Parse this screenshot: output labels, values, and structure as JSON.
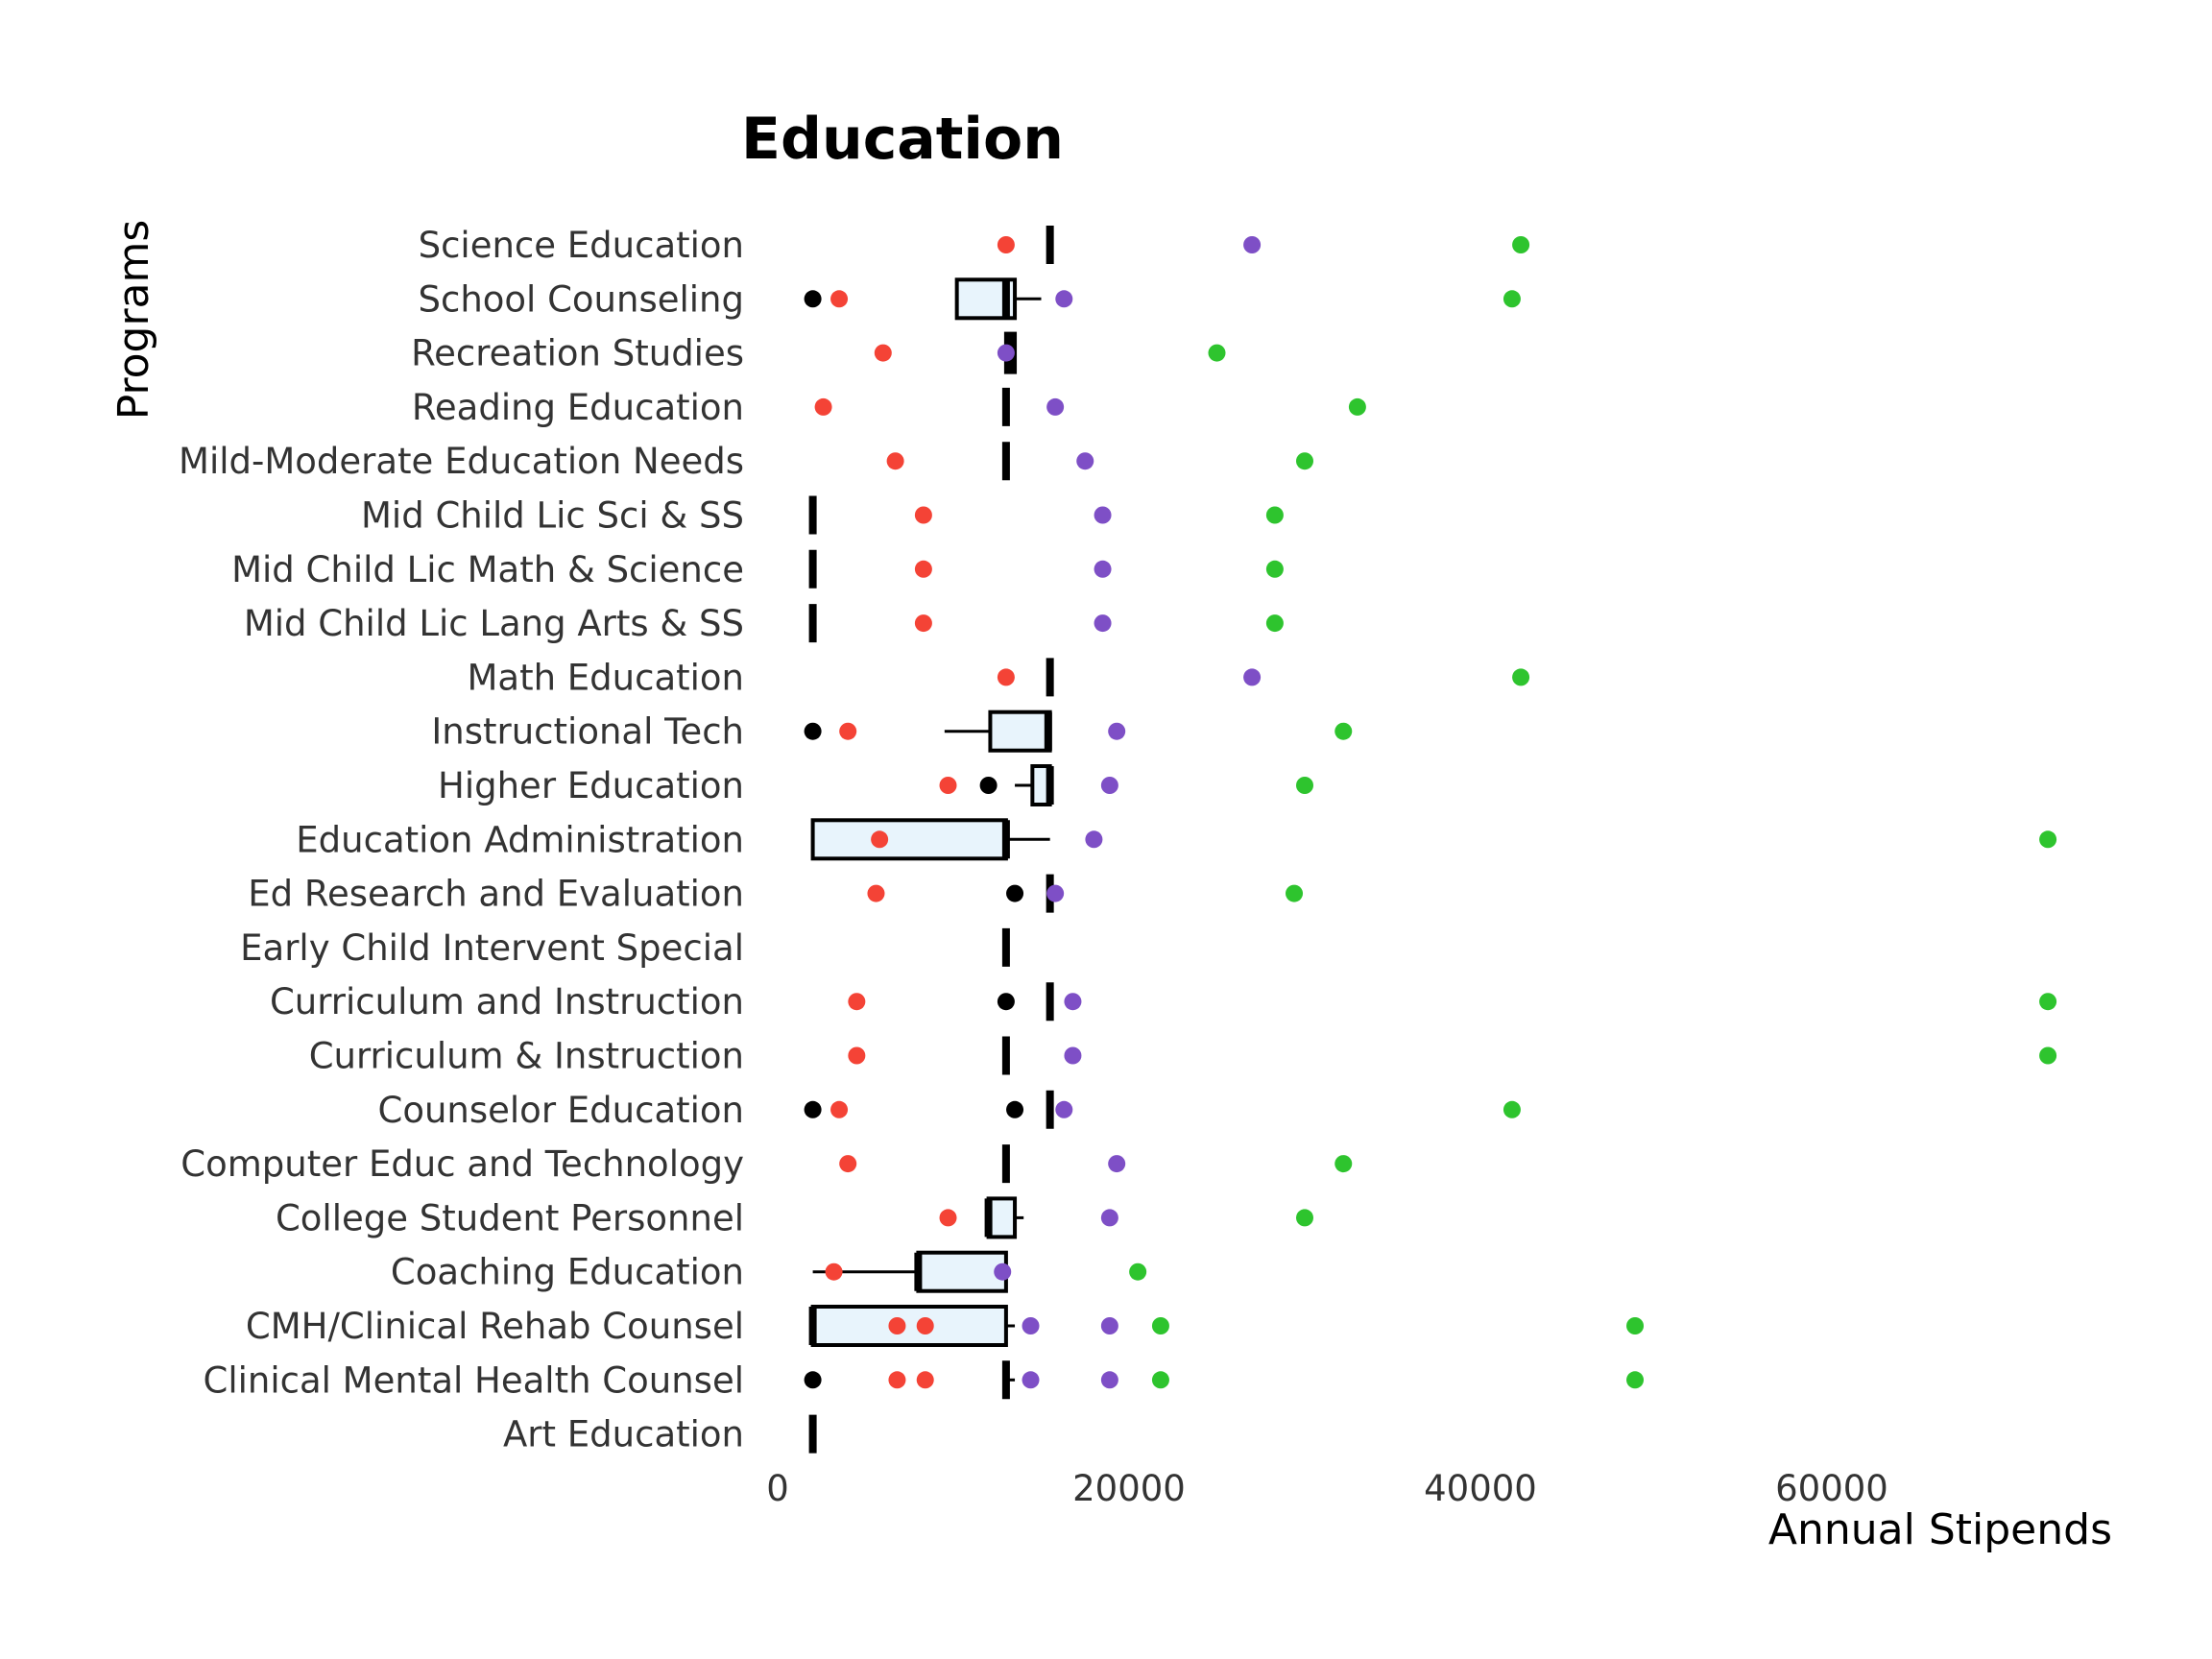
{
  "chart_data": {
    "type": "boxplot",
    "title": "Education",
    "xlabel": "Annual Stipends",
    "ylabel": "Programs",
    "xlim": [
      0,
      75000
    ],
    "xticks": [
      0,
      20000,
      40000,
      60000
    ],
    "xtick_labels": [
      "0",
      "20000",
      "40000",
      "60000"
    ],
    "grid": false,
    "colors": {
      "box_fill": "#e8f4fc",
      "box_stroke": "#000000",
      "outlier": "#000000",
      "point_red": "#f44336",
      "point_purple": "#7e4fc6",
      "point_green": "#2ec42e"
    },
    "categories": [
      "Science Education",
      "School Counseling",
      "Recreation Studies",
      "Reading Education",
      "Mild-Moderate Education Needs",
      "Mid Child Lic Sci & SS",
      "Mid Child Lic Math & Science",
      "Mid Child Lic Lang Arts & SS",
      "Math Education",
      "Instructional Tech",
      "Higher Education",
      "Education Administration",
      "Ed Research and Evaluation",
      "Early Child Intervent Special",
      "Curriculum and Instruction",
      "Curriculum & Instruction",
      "Counselor Education",
      "Computer Educ and Technology",
      "College Student Personnel",
      "Coaching Education",
      "CMH/Clinical Rehab Counsel",
      "Clinical Mental Health Counsel",
      "Art Education"
    ],
    "boxes": [
      {
        "min": 15500,
        "q1": 15500,
        "median": 15500,
        "q3": 15500,
        "max": 15500,
        "outliers": []
      },
      {
        "min": 10200,
        "q1": 10200,
        "median": 13000,
        "q3": 13500,
        "max": 15000,
        "outliers": [
          2000
        ]
      },
      {
        "min": 13000,
        "q1": 13000,
        "median": 13200,
        "q3": 13500,
        "max": 13500,
        "outliers": []
      },
      {
        "min": 13000,
        "q1": 13000,
        "median": 13000,
        "q3": 13000,
        "max": 13000,
        "outliers": []
      },
      {
        "min": 13000,
        "q1": 13000,
        "median": 13000,
        "q3": 13000,
        "max": 13000,
        "outliers": []
      },
      {
        "min": 2000,
        "q1": 2000,
        "median": 2000,
        "q3": 2000,
        "max": 2000,
        "outliers": []
      },
      {
        "min": 2000,
        "q1": 2000,
        "median": 2000,
        "q3": 2000,
        "max": 2000,
        "outliers": []
      },
      {
        "min": 2000,
        "q1": 2000,
        "median": 2000,
        "q3": 2000,
        "max": 2000,
        "outliers": []
      },
      {
        "min": 15500,
        "q1": 15500,
        "median": 15500,
        "q3": 15500,
        "max": 15500,
        "outliers": []
      },
      {
        "min": 9500,
        "q1": 12100,
        "median": 15400,
        "q3": 15500,
        "max": 15500,
        "outliers": [
          2000
        ]
      },
      {
        "min": 13500,
        "q1": 14500,
        "median": 15500,
        "q3": 15500,
        "max": 15500,
        "outliers": [
          12000
        ]
      },
      {
        "min": 2000,
        "q1": 2000,
        "median": 13000,
        "q3": 13000,
        "max": 15500,
        "outliers": []
      },
      {
        "min": 15500,
        "q1": 15500,
        "median": 15500,
        "q3": 15500,
        "max": 15500,
        "outliers": [
          13500
        ]
      },
      {
        "min": 13000,
        "q1": 13000,
        "median": 13000,
        "q3": 13000,
        "max": 13000,
        "outliers": []
      },
      {
        "min": 15500,
        "q1": 15500,
        "median": 15500,
        "q3": 15500,
        "max": 15500,
        "outliers": [
          13000
        ]
      },
      {
        "min": 13000,
        "q1": 13000,
        "median": 13000,
        "q3": 13000,
        "max": 13000,
        "outliers": []
      },
      {
        "min": 15500,
        "q1": 15500,
        "median": 15500,
        "q3": 15500,
        "max": 15500,
        "outliers": [
          2000,
          13500
        ]
      },
      {
        "min": 13000,
        "q1": 13000,
        "median": 13000,
        "q3": 13000,
        "max": 13000,
        "outliers": []
      },
      {
        "min": 12000,
        "q1": 12000,
        "median": 12000,
        "q3": 13500,
        "max": 14000,
        "outliers": []
      },
      {
        "min": 2000,
        "q1": 8000,
        "median": 8000,
        "q3": 13000,
        "max": 13000,
        "outliers": []
      },
      {
        "min": 2000,
        "q1": 2000,
        "median": 2000,
        "q3": 13000,
        "max": 13500,
        "outliers": []
      },
      {
        "min": 13000,
        "q1": 13000,
        "median": 13000,
        "q3": 13000,
        "max": 13500,
        "outliers": [
          2000
        ]
      },
      {
        "min": 2000,
        "q1": 2000,
        "median": 2000,
        "q3": 2000,
        "max": 2000,
        "outliers": []
      }
    ],
    "points": {
      "red": [
        [
          13000
        ],
        [
          3500
        ],
        [
          6000
        ],
        [
          2600
        ],
        [
          6700
        ],
        [
          8300
        ],
        [
          8300
        ],
        [
          8300
        ],
        [
          13000
        ],
        [
          4000
        ],
        [
          9700
        ],
        [
          5800
        ],
        [
          5600
        ],
        [],
        [
          4500
        ],
        [
          4500
        ],
        [
          3500
        ],
        [
          4000
        ],
        [
          9700
        ],
        [
          3200
        ],
        [
          6800,
          8400
        ],
        [
          6800,
          8400
        ],
        []
      ],
      "purple": [
        [
          27000
        ],
        [
          16300
        ],
        [
          13000
        ],
        [
          15800
        ],
        [
          17500
        ],
        [
          18500
        ],
        [
          18500
        ],
        [
          18500
        ],
        [
          27000
        ],
        [
          19300
        ],
        [
          18900
        ],
        [
          18000
        ],
        [
          15800
        ],
        [],
        [
          16800
        ],
        [
          16800
        ],
        [
          16300
        ],
        [
          19300
        ],
        [
          18900
        ],
        [
          12800
        ],
        [
          14400,
          18900
        ],
        [
          14400,
          18900
        ],
        []
      ],
      "green": [
        [
          42300
        ],
        [
          41800
        ],
        [
          25000
        ],
        [
          33000
        ],
        [
          30000
        ],
        [
          28300
        ],
        [
          28300
        ],
        [
          28300
        ],
        [
          42300
        ],
        [
          32200
        ],
        [
          30000
        ],
        [
          72300
        ],
        [
          29400
        ],
        [],
        [
          72300
        ],
        [
          72300
        ],
        [
          41800
        ],
        [
          32200
        ],
        [
          30000
        ],
        [
          20500
        ],
        [
          21800,
          48800
        ],
        [
          21800,
          48800
        ],
        []
      ]
    }
  }
}
